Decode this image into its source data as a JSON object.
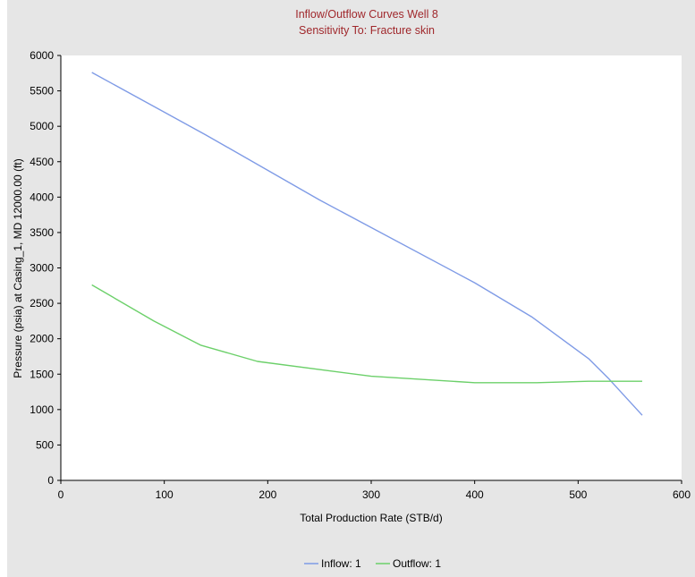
{
  "chart_data": {
    "type": "line",
    "title": "Inflow/Outflow Curves Well 8",
    "subtitle": "Sensitivity To: Fracture skin",
    "xlabel": "Total Production Rate (STB/d)",
    "ylabel": "Pressure (psia) at Casing_1, MD 12000.00 (ft)",
    "xlim": [
      0,
      600
    ],
    "ylim": [
      0,
      6000
    ],
    "xticks": [
      0,
      100,
      200,
      300,
      400,
      500,
      600
    ],
    "yticks": [
      0,
      500,
      1000,
      1500,
      2000,
      2500,
      3000,
      3500,
      4000,
      4500,
      5000,
      5500,
      6000
    ],
    "grid": false,
    "legend_position": "bottom-center",
    "series": [
      {
        "name": "Inflow: 1",
        "color": "#7f9be6",
        "points": [
          [
            30,
            5760
          ],
          [
            140,
            4880
          ],
          [
            250,
            3960
          ],
          [
            400,
            2790
          ],
          [
            455,
            2310
          ],
          [
            510,
            1720
          ],
          [
            530,
            1430
          ],
          [
            562,
            920
          ]
        ]
      },
      {
        "name": "Outflow: 1",
        "color": "#6cd06a",
        "points": [
          [
            30,
            2760
          ],
          [
            90,
            2250
          ],
          [
            135,
            1910
          ],
          [
            190,
            1680
          ],
          [
            300,
            1470
          ],
          [
            400,
            1380
          ],
          [
            460,
            1380
          ],
          [
            510,
            1400
          ],
          [
            562,
            1400
          ]
        ]
      }
    ]
  }
}
